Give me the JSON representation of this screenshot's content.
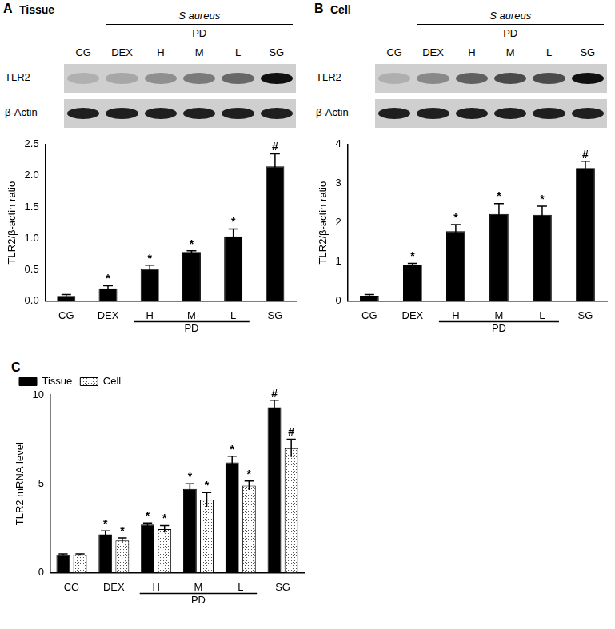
{
  "panels": [
    {
      "label": "A",
      "title": "Tissue",
      "blot": {
        "treatment": "S aureus",
        "group": "PD",
        "group_span": [
          "H",
          "L"
        ],
        "lanes": [
          "CG",
          "DEX",
          "H",
          "M",
          "L",
          "SG"
        ],
        "rows": [
          "TLR2",
          "β-Actin"
        ]
      }
    },
    {
      "label": "B",
      "title": "Cell",
      "blot": {
        "treatment": "S aureus",
        "group": "PD",
        "group_span": [
          "H",
          "L"
        ],
        "lanes": [
          "CG",
          "DEX",
          "H",
          "M",
          "L",
          "SG"
        ],
        "rows": [
          "TLR2",
          "β-Actin"
        ]
      }
    },
    {
      "label": "C"
    }
  ],
  "chart_data": [
    {
      "type": "bar",
      "categories": [
        "CG",
        "DEX",
        "H",
        "M",
        "L",
        "SG"
      ],
      "values": [
        0.08,
        0.2,
        0.51,
        0.78,
        1.03,
        2.15
      ],
      "errors": [
        0.02,
        0.04,
        0.06,
        0.02,
        0.12,
        0.2
      ],
      "marks": [
        null,
        "*",
        "*",
        "*",
        "*",
        "#"
      ],
      "color": "#000000",
      "y_label": "TLR2/β-actin ratio",
      "ylim": [
        0,
        2.5
      ],
      "yticks": [
        {
          "value": 0,
          "label": "0.0"
        },
        {
          "value": 0.5,
          "label": "0.5"
        },
        {
          "value": 1,
          "label": "1.0"
        },
        {
          "value": 1.5,
          "label": "1.5"
        },
        {
          "value": 2,
          "label": "2.0"
        },
        {
          "value": 2.5,
          "label": "2.5"
        }
      ],
      "annotations": [
        {
          "text": "PD",
          "from": "H",
          "to": "L"
        }
      ],
      "grid": false
    },
    {
      "type": "bar",
      "categories": [
        "CG",
        "DEX",
        "H",
        "M",
        "L",
        "SG"
      ],
      "values": [
        0.13,
        0.93,
        1.78,
        2.22,
        2.2,
        3.4
      ],
      "errors": [
        0.03,
        0.03,
        0.17,
        0.27,
        0.22,
        0.17
      ],
      "marks": [
        null,
        "*",
        "*",
        "*",
        "*",
        "#"
      ],
      "color": "#000000",
      "y_label": "TLR2/β-actin ratio",
      "ylim": [
        0,
        4
      ],
      "yticks": [
        0,
        1,
        2,
        3,
        4
      ],
      "annotations": [
        {
          "text": "PD",
          "from": "H",
          "to": "L"
        }
      ],
      "grid": false
    },
    {
      "type": "bar",
      "categories": [
        "CG",
        "DEX",
        "H",
        "M",
        "L",
        "SG"
      ],
      "series": [
        {
          "name": "Tissue",
          "color": "#000000",
          "values": [
            1.0,
            2.15,
            2.7,
            4.7,
            6.2,
            9.3
          ],
          "errors": [
            0.05,
            0.2,
            0.1,
            0.3,
            0.35,
            0.4
          ],
          "marks": [
            null,
            "*",
            "*",
            "*",
            "*",
            "#"
          ]
        },
        {
          "name": "Cell",
          "color": "#ffffff",
          "values": [
            1.0,
            1.8,
            2.45,
            4.1,
            4.9,
            7.0
          ],
          "errors": [
            0.05,
            0.15,
            0.2,
            0.4,
            0.25,
            0.5
          ],
          "marks": [
            null,
            "*",
            "*",
            "*",
            "*",
            "#"
          ]
        }
      ],
      "y_label": "TLR2 mRNA level",
      "ylim": [
        0,
        10
      ],
      "yticks": [
        0,
        5,
        10
      ],
      "annotations": [
        {
          "text": "PD",
          "from": "H",
          "to": "L"
        }
      ],
      "legend": "top-left",
      "grid": false
    }
  ]
}
